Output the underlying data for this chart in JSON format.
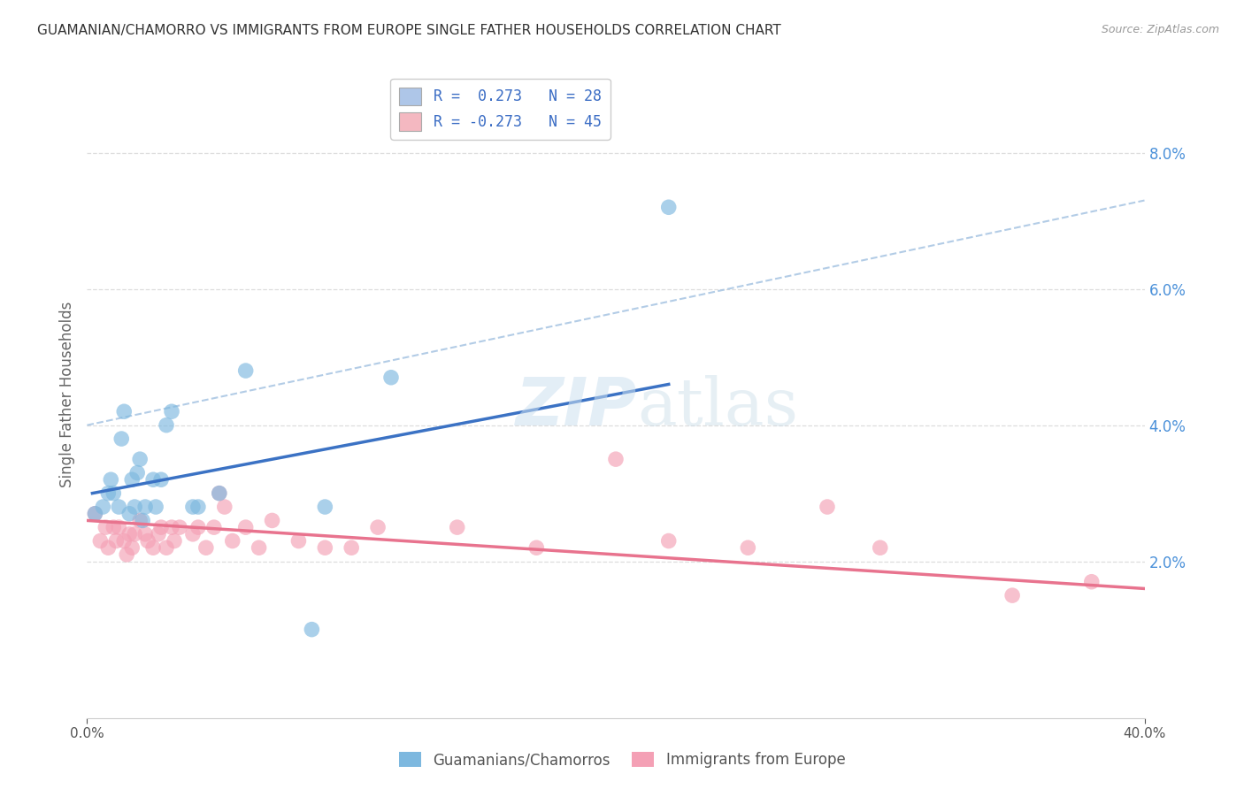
{
  "title": "GUAMANIAN/CHAMORRO VS IMMIGRANTS FROM EUROPE SINGLE FATHER HOUSEHOLDS CORRELATION CHART",
  "source": "Source: ZipAtlas.com",
  "ylabel": "Single Father Households",
  "y_ticks_labels": [
    "2.0%",
    "4.0%",
    "6.0%",
    "8.0%"
  ],
  "y_tick_vals": [
    0.02,
    0.04,
    0.06,
    0.08
  ],
  "x_lim": [
    0.0,
    0.4
  ],
  "y_lim": [
    -0.003,
    0.092
  ],
  "legend1_label": "R =  0.273   N = 28",
  "legend2_label": "R = -0.273   N = 45",
  "legend1_patch_color": "#aec6e8",
  "legend2_patch_color": "#f4b8c1",
  "line1_color": "#3b72c4",
  "line2_color": "#e8738e",
  "scatter1_color": "#7db8df",
  "scatter2_color": "#f4a0b5",
  "scatter1_x": [
    0.003,
    0.006,
    0.008,
    0.009,
    0.01,
    0.012,
    0.013,
    0.014,
    0.016,
    0.017,
    0.018,
    0.019,
    0.02,
    0.021,
    0.022,
    0.025,
    0.026,
    0.028,
    0.03,
    0.032,
    0.04,
    0.042,
    0.05,
    0.06,
    0.085,
    0.09,
    0.115,
    0.22
  ],
  "scatter1_y": [
    0.027,
    0.028,
    0.03,
    0.032,
    0.03,
    0.028,
    0.038,
    0.042,
    0.027,
    0.032,
    0.028,
    0.033,
    0.035,
    0.026,
    0.028,
    0.032,
    0.028,
    0.032,
    0.04,
    0.042,
    0.028,
    0.028,
    0.03,
    0.048,
    0.01,
    0.028,
    0.047,
    0.072
  ],
  "scatter2_x": [
    0.003,
    0.005,
    0.007,
    0.008,
    0.01,
    0.011,
    0.012,
    0.014,
    0.015,
    0.016,
    0.017,
    0.018,
    0.02,
    0.022,
    0.023,
    0.025,
    0.027,
    0.028,
    0.03,
    0.032,
    0.033,
    0.035,
    0.04,
    0.042,
    0.045,
    0.048,
    0.05,
    0.052,
    0.055,
    0.06,
    0.065,
    0.07,
    0.08,
    0.09,
    0.1,
    0.11,
    0.14,
    0.17,
    0.2,
    0.22,
    0.25,
    0.28,
    0.3,
    0.35,
    0.38
  ],
  "scatter2_y": [
    0.027,
    0.023,
    0.025,
    0.022,
    0.025,
    0.023,
    0.025,
    0.023,
    0.021,
    0.024,
    0.022,
    0.024,
    0.026,
    0.024,
    0.023,
    0.022,
    0.024,
    0.025,
    0.022,
    0.025,
    0.023,
    0.025,
    0.024,
    0.025,
    0.022,
    0.025,
    0.03,
    0.028,
    0.023,
    0.025,
    0.022,
    0.026,
    0.023,
    0.022,
    0.022,
    0.025,
    0.025,
    0.022,
    0.035,
    0.023,
    0.022,
    0.028,
    0.022,
    0.015,
    0.017
  ],
  "line1_x": [
    0.002,
    0.22
  ],
  "line1_y": [
    0.03,
    0.046
  ],
  "line2_x": [
    0.0,
    0.4
  ],
  "line2_y": [
    0.026,
    0.016
  ],
  "dashed_line_x": [
    0.0,
    0.4
  ],
  "dashed_line_y": [
    0.04,
    0.073
  ],
  "background_color": "#ffffff",
  "grid_color": "#dddddd",
  "grid_line_style": "--"
}
